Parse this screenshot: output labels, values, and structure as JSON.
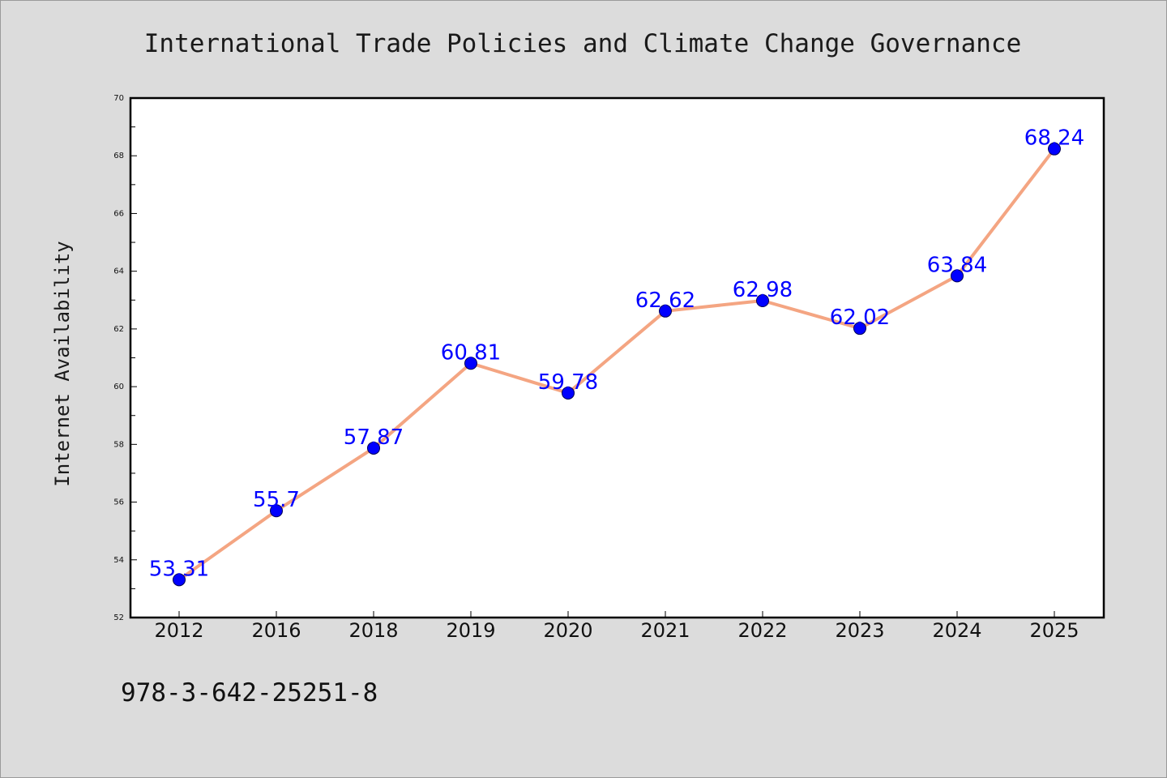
{
  "chart_data": {
    "type": "line",
    "title": "International Trade Policies and Climate Change Governance",
    "xlabel": "",
    "ylabel": "Internet Availability",
    "categories": [
      "2012",
      "2016",
      "2018",
      "2019",
      "2020",
      "2021",
      "2022",
      "2023",
      "2024",
      "2025"
    ],
    "series": [
      {
        "values": [
          53.31,
          55.7,
          57.87,
          60.81,
          59.78,
          62.62,
          62.98,
          62.02,
          63.84,
          68.24
        ],
        "data_labels": [
          "53.31",
          "55.7",
          "57.87",
          "60.81",
          "59.78",
          "62.62",
          "62.98",
          "62.02",
          "63.84",
          "68.24"
        ],
        "line_color": "#f4a582",
        "marker_color": "#0000ff",
        "label_color": "#0000ff"
      }
    ],
    "ylim": [
      52,
      70
    ],
    "yticks": [
      "52",
      "54",
      "56",
      "58",
      "60",
      "62",
      "64",
      "66",
      "68",
      "70"
    ],
    "grid": false,
    "legend": "none"
  },
  "footnote": "978-3-642-25251-8",
  "colors": {
    "figure_background": "#dcdcdc",
    "plot_background": "#ffffff"
  }
}
